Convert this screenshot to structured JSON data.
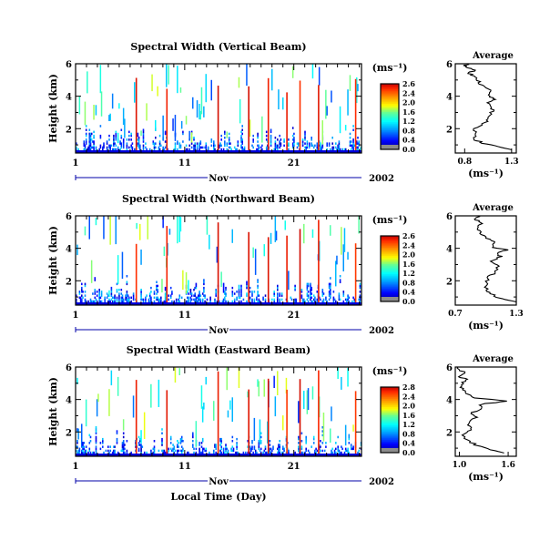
{
  "chart_data": [
    {
      "type": "heatmap",
      "title": "Spectral Width (Vertical Beam)",
      "ylabel": "Height (km)",
      "y_ticks": [
        "6",
        "4",
        "2"
      ],
      "x_ticks": [
        "1",
        "11",
        "21"
      ],
      "ylim": [
        0.5,
        6
      ],
      "month_label": "Nov",
      "year_label": "2002",
      "colorbar": {
        "unit": "(ms⁻¹)",
        "ticks": [
          "2.6",
          "2.4",
          "2.0",
          "1.6",
          "1.2",
          "0.8",
          "0.4",
          "0.0"
        ],
        "range": [
          0,
          2.8
        ]
      },
      "average": {
        "title": "Average",
        "xlabel": "(ms⁻¹)",
        "x_ticks": [
          "0.8",
          "1.3"
        ],
        "xlim": [
          0.7,
          1.35
        ],
        "y_ticks": [
          "6",
          "4",
          "2"
        ],
        "profile": [
          [
            1.3,
            0.7
          ],
          [
            1.15,
            0.9
          ],
          [
            1.0,
            1.1
          ],
          [
            0.92,
            1.3
          ],
          [
            0.9,
            1.6
          ],
          [
            0.92,
            2.0
          ],
          [
            1.0,
            2.3
          ],
          [
            1.05,
            2.6
          ],
          [
            1.08,
            3.0
          ],
          [
            1.1,
            3.3
          ],
          [
            1.05,
            3.6
          ],
          [
            1.12,
            3.8
          ],
          [
            1.05,
            4.0
          ],
          [
            1.1,
            4.3
          ],
          [
            1.0,
            4.6
          ],
          [
            0.95,
            4.9
          ],
          [
            0.92,
            5.2
          ],
          [
            0.85,
            5.4
          ],
          [
            0.9,
            5.6
          ],
          [
            0.8,
            5.8
          ],
          [
            0.82,
            6.0
          ]
        ]
      }
    },
    {
      "type": "heatmap",
      "title": "Spectral Width (Northward Beam)",
      "ylabel": "Height (km)",
      "y_ticks": [
        "6",
        "4",
        "2"
      ],
      "x_ticks": [
        "1",
        "11",
        "21"
      ],
      "ylim": [
        0.5,
        6
      ],
      "month_label": "Nov",
      "year_label": "2002",
      "colorbar": {
        "unit": "(ms⁻¹)",
        "ticks": [
          "2.6",
          "2.4",
          "2.0",
          "1.6",
          "1.2",
          "0.8",
          "0.4",
          "0.0"
        ],
        "range": [
          0,
          2.8
        ]
      },
      "average": {
        "title": "Average",
        "xlabel": "(ms⁻¹)",
        "x_ticks": [
          "0.7",
          "1.3"
        ],
        "xlim": [
          0.7,
          1.3
        ],
        "y_ticks": [
          "6",
          "4",
          "2"
        ],
        "profile": [
          [
            1.3,
            0.7
          ],
          [
            1.15,
            0.9
          ],
          [
            1.05,
            1.2
          ],
          [
            1.0,
            1.5
          ],
          [
            1.02,
            1.9
          ],
          [
            1.0,
            2.2
          ],
          [
            1.1,
            2.5
          ],
          [
            1.12,
            2.9
          ],
          [
            1.05,
            3.2
          ],
          [
            1.15,
            3.5
          ],
          [
            1.1,
            3.7
          ],
          [
            1.2,
            3.9
          ],
          [
            1.05,
            4.1
          ],
          [
            1.1,
            4.4
          ],
          [
            0.98,
            4.7
          ],
          [
            0.95,
            5.0
          ],
          [
            0.92,
            5.3
          ],
          [
            0.96,
            5.6
          ],
          [
            0.9,
            5.8
          ],
          [
            0.92,
            6.0
          ]
        ]
      }
    },
    {
      "type": "heatmap",
      "title": "Spectral Width (Eastward Beam)",
      "ylabel": "Height (km)",
      "y_ticks": [
        "6",
        "4",
        "2"
      ],
      "x_ticks": [
        "1",
        "11",
        "21"
      ],
      "xlabel": "Local Time (Day)",
      "ylim": [
        0.5,
        6
      ],
      "month_label": "Nov",
      "year_label": "2002",
      "colorbar": {
        "unit": "(ms⁻¹)",
        "ticks": [
          "2.8",
          "2.4",
          "2.0",
          "1.6",
          "1.2",
          "0.8",
          "0.4",
          "0.0"
        ],
        "range": [
          0,
          3.0
        ]
      },
      "average": {
        "title": "Average",
        "xlabel": "(ms⁻¹)",
        "x_ticks": [
          "1.0",
          "1.6"
        ],
        "xlim": [
          0.95,
          1.7
        ],
        "y_ticks": [
          "6",
          "4",
          "2"
        ],
        "profile": [
          [
            1.55,
            0.7
          ],
          [
            1.4,
            0.9
          ],
          [
            1.2,
            1.2
          ],
          [
            1.1,
            1.5
          ],
          [
            1.05,
            1.9
          ],
          [
            1.15,
            2.2
          ],
          [
            1.1,
            2.5
          ],
          [
            1.2,
            2.9
          ],
          [
            1.15,
            3.2
          ],
          [
            1.3,
            3.5
          ],
          [
            1.25,
            3.7
          ],
          [
            1.6,
            3.9
          ],
          [
            1.2,
            4.1
          ],
          [
            1.1,
            4.3
          ],
          [
            1.05,
            4.6
          ],
          [
            1.0,
            4.9
          ],
          [
            1.1,
            5.2
          ],
          [
            1.0,
            5.4
          ],
          [
            1.05,
            5.7
          ],
          [
            0.98,
            6.0
          ]
        ]
      }
    }
  ]
}
